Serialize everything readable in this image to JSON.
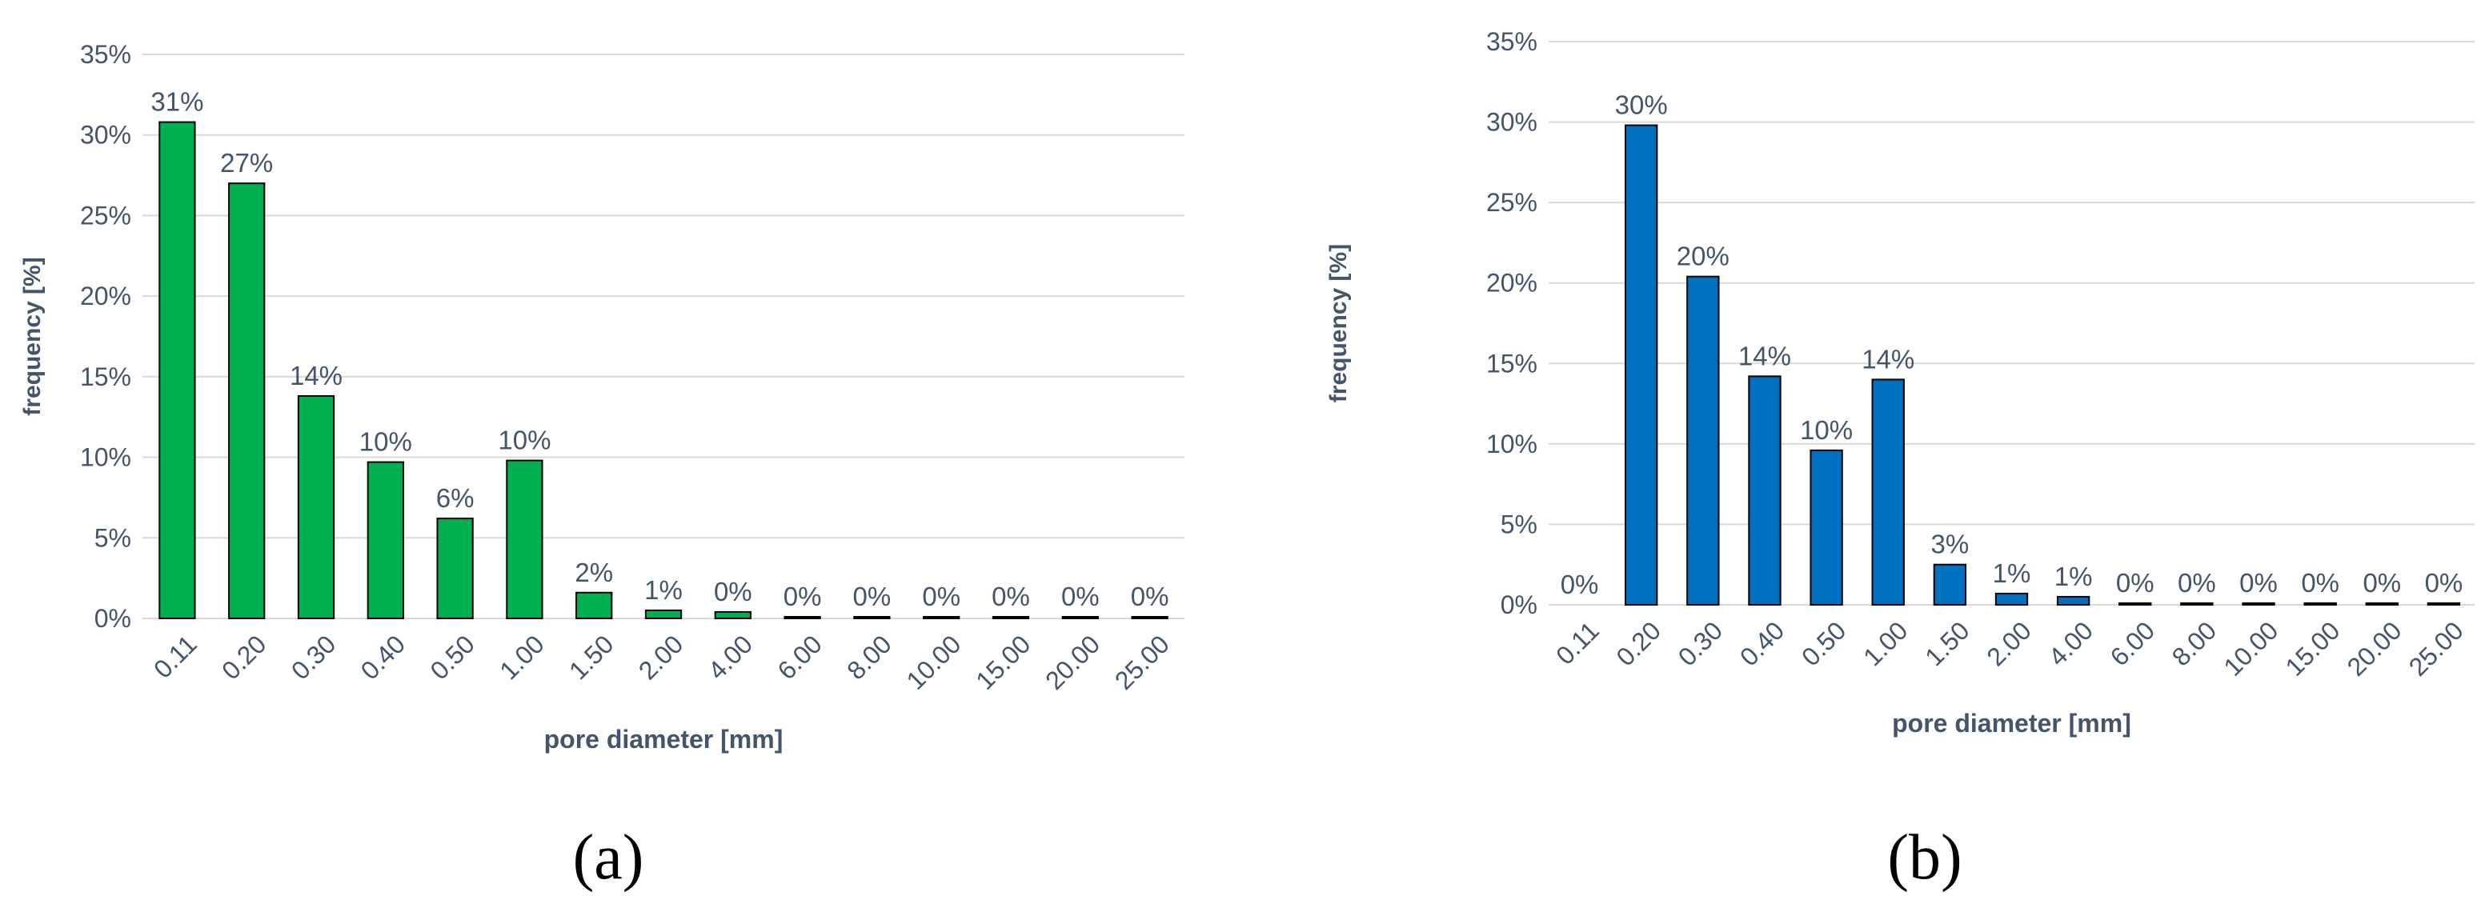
{
  "chart_data": [
    {
      "type": "bar",
      "panel_label": "(a)",
      "title": "",
      "xlabel": "pore diameter [mm]",
      "ylabel": "frequency  [%]",
      "ylim": [
        0,
        35
      ],
      "yticks": [
        "0%",
        "5%",
        "10%",
        "15%",
        "20%",
        "25%",
        "30%",
        "35%"
      ],
      "categories": [
        "0.11",
        "0.20",
        "0.30",
        "0.40",
        "0.50",
        "1.00",
        "1.50",
        "2.00",
        "4.00",
        "6.00",
        "8.00",
        "10.00",
        "15.00",
        "20.00",
        "25.00"
      ],
      "values": [
        30.8,
        27.0,
        13.8,
        9.7,
        6.2,
        9.8,
        1.6,
        0.5,
        0.4,
        0.1,
        0.1,
        0.1,
        0.1,
        0.1,
        0.1
      ],
      "data_labels": [
        "31%",
        "27%",
        "14%",
        "10%",
        "6%",
        "10%",
        "2%",
        "1%",
        "0%",
        "0%",
        "0%",
        "0%",
        "0%",
        "0%",
        "0%"
      ],
      "bar_color": "#00B050",
      "grid": true,
      "legend": "none"
    },
    {
      "type": "bar",
      "panel_label": "(b)",
      "title": "",
      "xlabel": "pore diameter [mm]",
      "ylabel": "frequency [%]",
      "ylim": [
        0,
        35
      ],
      "yticks": [
        "0%",
        "5%",
        "10%",
        "15%",
        "20%",
        "25%",
        "30%",
        "35%"
      ],
      "categories": [
        "0.11",
        "0.20",
        "0.30",
        "0.40",
        "0.50",
        "1.00",
        "1.50",
        "2.00",
        "4.00",
        "6.00",
        "8.00",
        "10.00",
        "15.00",
        "20.00",
        "25.00"
      ],
      "values": [
        0,
        29.8,
        20.4,
        14.2,
        9.6,
        14.0,
        2.5,
        0.7,
        0.5,
        0.1,
        0.1,
        0.1,
        0.1,
        0.1,
        0.1
      ],
      "data_labels": [
        "0%",
        "30%",
        "20%",
        "14%",
        "10%",
        "14%",
        "3%",
        "1%",
        "1%",
        "0%",
        "0%",
        "0%",
        "0%",
        "0%",
        "0%"
      ],
      "bar_color": "#0070C0",
      "grid": true,
      "legend": "none"
    }
  ]
}
